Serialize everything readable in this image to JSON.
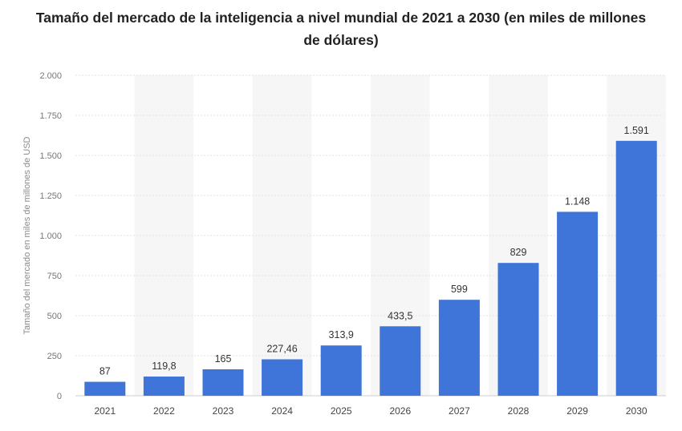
{
  "chart_data": {
    "type": "bar",
    "title": "Tamaño del mercado de la inteligencia a nivel mundial de 2021 a 2030 (en miles de millones de dólares)",
    "xlabel": "",
    "ylabel": "Tamaño del mercado en miles de millones de USD",
    "categories": [
      "2021",
      "2022",
      "2023",
      "2024",
      "2025",
      "2026",
      "2027",
      "2028",
      "2029",
      "2030"
    ],
    "values": [
      87,
      119.8,
      165,
      227.46,
      313.9,
      433.5,
      599,
      829,
      1148,
      1591
    ],
    "value_labels": [
      "87",
      "119,8",
      "165",
      "227,46",
      "313,9",
      "433,5",
      "599",
      "829",
      "1.148",
      "1.591"
    ],
    "ylim": [
      0,
      2000
    ],
    "yticks": [
      0,
      250,
      500,
      750,
      1000,
      1250,
      1500,
      1750,
      2000
    ],
    "ytick_labels": [
      "0",
      "250",
      "500",
      "750",
      "1.000",
      "1.250",
      "1.500",
      "1.750",
      "2.000"
    ],
    "grid": true,
    "legend": "none",
    "bar_color": "#3f74d8"
  }
}
